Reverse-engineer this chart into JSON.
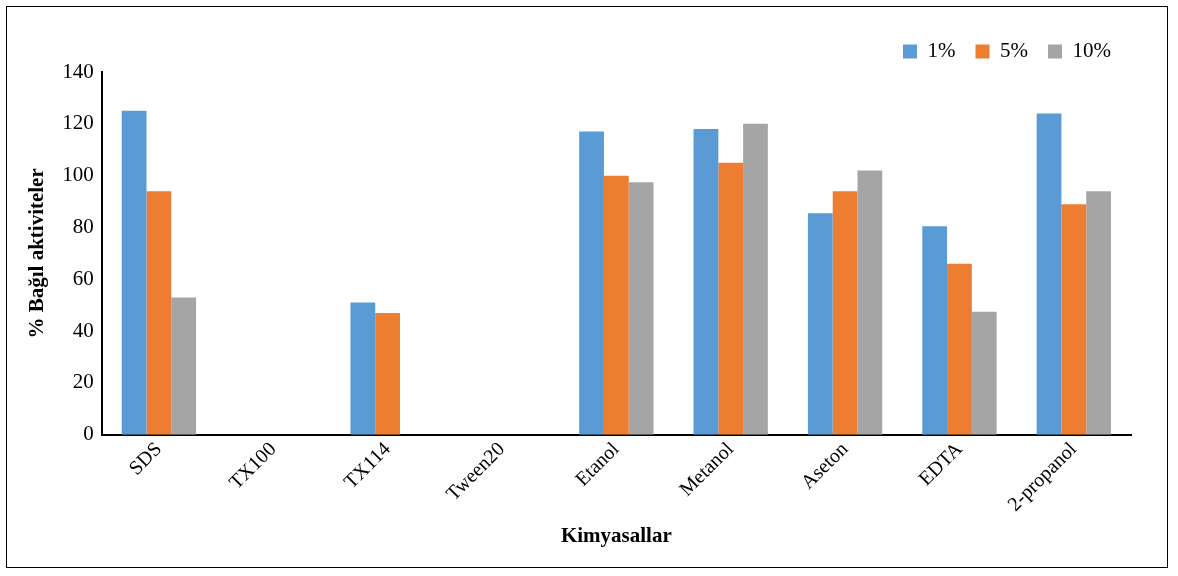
{
  "chart_data": {
    "type": "bar",
    "xlabel": "Kimyasallar",
    "ylabel": "% Bağıl aktiviteler",
    "categories": [
      "SDS",
      "TX100",
      "TX114",
      "Tween20",
      "Etanol",
      "Metanol",
      "Aseton",
      "EDTA",
      "2-propanol"
    ],
    "series": [
      {
        "name": "1%",
        "color": "#5b9bd5",
        "values": [
          125,
          0,
          51,
          0,
          117,
          118,
          85.5,
          80.5,
          124
        ]
      },
      {
        "name": "5%",
        "color": "#ed7d31",
        "values": [
          94,
          0,
          47,
          0,
          100,
          105,
          94,
          66,
          89
        ]
      },
      {
        "name": "10%",
        "color": "#a5a5a5",
        "values": [
          53,
          0,
          0,
          0,
          97.5,
          120,
          102,
          47.5,
          94
        ]
      }
    ],
    "ylim": [
      0,
      140
    ],
    "yticks": [
      0,
      20,
      40,
      60,
      80,
      100,
      120,
      140
    ],
    "grid": false,
    "legend": "top right"
  }
}
